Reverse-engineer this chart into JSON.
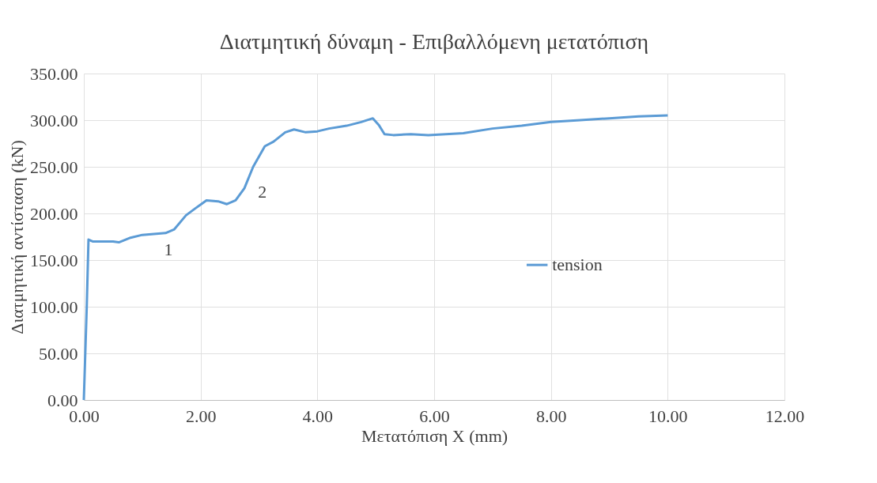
{
  "chart_data": {
    "type": "line",
    "title": "Διατμητική δύναμη - Επιβαλλόμενη μετατόπιση",
    "xlabel": "Μετατόπιση X (mm)",
    "ylabel": "Διατμητική αντίσταση (kN)",
    "x": [
      0,
      0.05,
      0.08,
      0.15,
      0.3,
      0.5,
      0.6,
      0.8,
      1.0,
      1.2,
      1.4,
      1.55,
      1.75,
      1.9,
      2.1,
      2.3,
      2.45,
      2.6,
      2.75,
      2.9,
      3.1,
      3.25,
      3.45,
      3.6,
      3.8,
      4.0,
      4.2,
      4.5,
      4.75,
      4.95,
      5.05,
      5.15,
      5.3,
      5.6,
      5.9,
      6.2,
      6.5,
      7.0,
      7.5,
      8.0,
      8.5,
      9.0,
      9.5,
      10.0
    ],
    "series": [
      {
        "name": "tension",
        "color": "#5b9bd5",
        "values": [
          0,
          100,
          172,
          170,
          170,
          170,
          169,
          174,
          177,
          178,
          179,
          183,
          198,
          205,
          214,
          213,
          210,
          214,
          227,
          250,
          272,
          277,
          287,
          290,
          287,
          288,
          291,
          294,
          298,
          302,
          295,
          285,
          284,
          285,
          284,
          285,
          286,
          291,
          294,
          298,
          300,
          302,
          304,
          305
        ]
      }
    ],
    "xlim": [
      0,
      12
    ],
    "xticks": [
      {
        "value": 0,
        "label": "0.00"
      },
      {
        "value": 2,
        "label": "2.00"
      },
      {
        "value": 4,
        "label": "4.00"
      },
      {
        "value": 6,
        "label": "6.00"
      },
      {
        "value": 8,
        "label": "8.00"
      },
      {
        "value": 10,
        "label": "10.00"
      },
      {
        "value": 12,
        "label": "12.00"
      }
    ],
    "ylim": [
      0,
      350
    ],
    "yticks": [
      {
        "value": 0,
        "label": "0.00"
      },
      {
        "value": 50,
        "label": "50.00"
      },
      {
        "value": 100,
        "label": "100.00"
      },
      {
        "value": 150,
        "label": "150.00"
      },
      {
        "value": 200,
        "label": "200.00"
      },
      {
        "value": 250,
        "label": "250.00"
      },
      {
        "value": 300,
        "label": "300.00"
      },
      {
        "value": 350,
        "label": "350.00"
      }
    ],
    "annotations": [
      {
        "text": "1",
        "x": 1.45,
        "y": 180
      },
      {
        "text": "2",
        "x": 2.65,
        "y": 216
      }
    ],
    "grid": true,
    "legend": "right",
    "marker": "none",
    "line_style": "solid"
  }
}
